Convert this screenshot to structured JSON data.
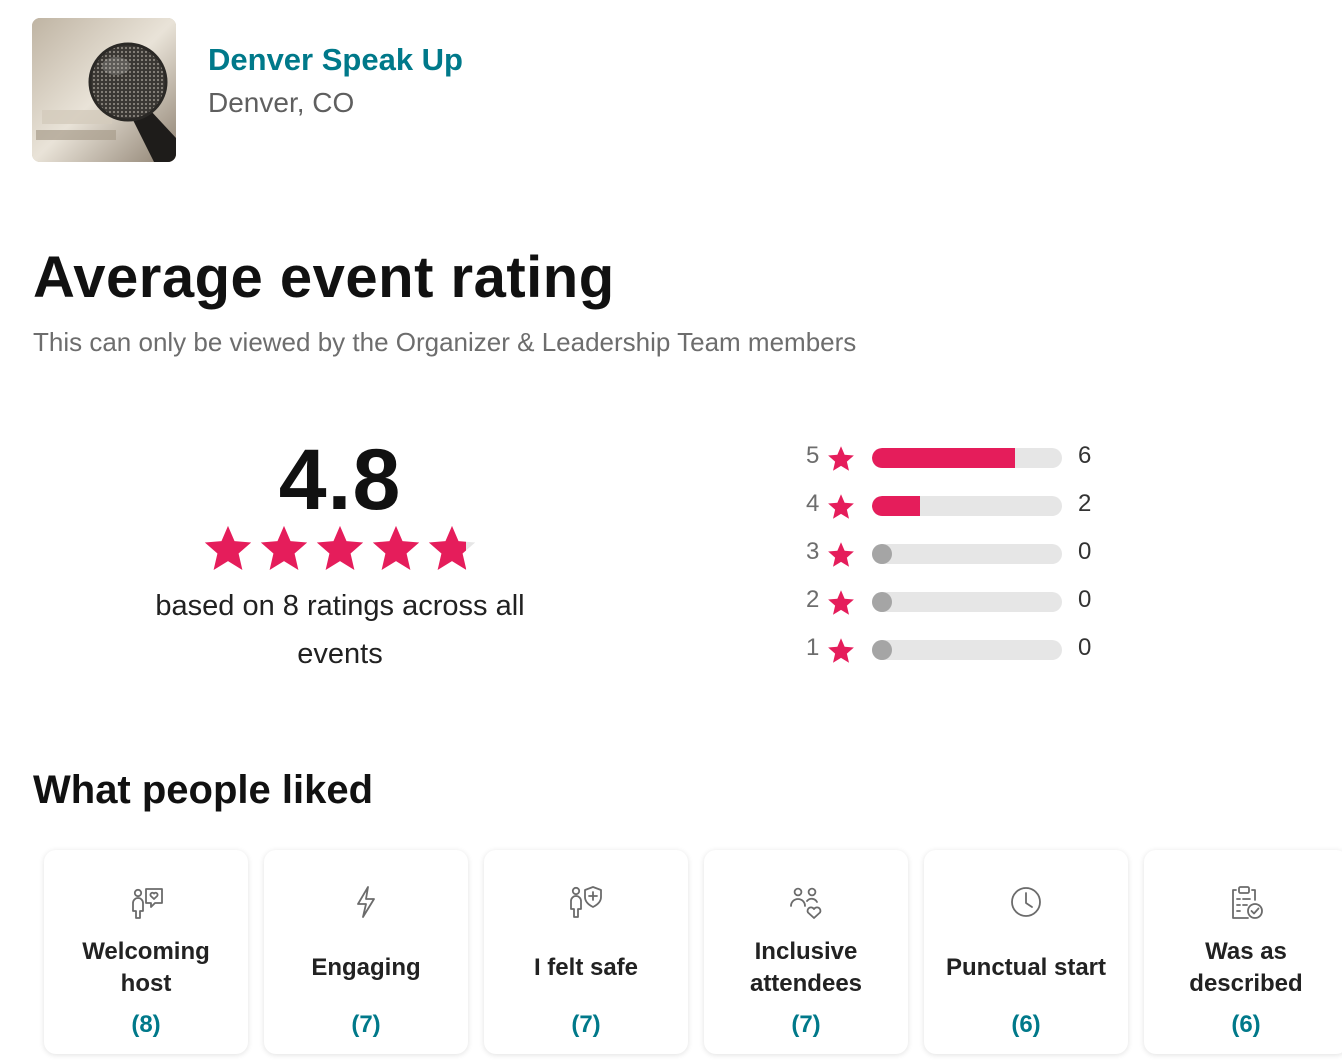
{
  "group": {
    "name": "Denver Speak Up",
    "location": "Denver, CO"
  },
  "rating": {
    "title": "Average event rating",
    "subtitle": "This can only be viewed by the Organizer & Leadership Team members",
    "average": "4.8",
    "average_value": 4.8,
    "max_stars": 5,
    "caption": "based on 8 ratings across all events",
    "distribution": [
      {
        "stars": "5",
        "count": "6",
        "fraction": 0.75
      },
      {
        "stars": "4",
        "count": "2",
        "fraction": 0.25
      },
      {
        "stars": "3",
        "count": "0",
        "fraction": 0
      },
      {
        "stars": "2",
        "count": "0",
        "fraction": 0
      },
      {
        "stars": "1",
        "count": "0",
        "fraction": 0
      }
    ]
  },
  "liked": {
    "title": "What people liked",
    "items": [
      {
        "label": "Welcoming host",
        "count": "(8)",
        "icon": "welcoming-host-icon"
      },
      {
        "label": "Engaging",
        "count": "(7)",
        "icon": "lightning-icon"
      },
      {
        "label": "I felt safe",
        "count": "(7)",
        "icon": "safe-shield-icon"
      },
      {
        "label": "Inclusive attendees",
        "count": "(7)",
        "icon": "people-heart-icon"
      },
      {
        "label": "Punctual start",
        "count": "(6)",
        "icon": "clock-icon"
      },
      {
        "label": "Was as described",
        "count": "(6)",
        "icon": "clipboard-check-icon"
      }
    ]
  },
  "colors": {
    "accent_teal": "#00798a",
    "star_pink": "#e51d5b",
    "bar_track": "#e6e6e6",
    "empty_dot": "#a5a5a5"
  }
}
